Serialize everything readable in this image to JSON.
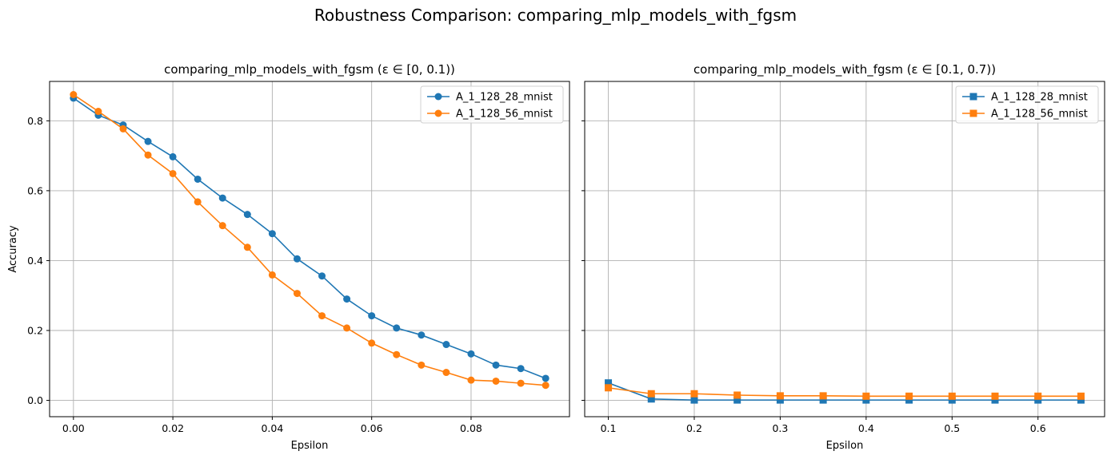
{
  "figure": {
    "title": "Robustness Comparison: comparing_mlp_models_with_fgsm"
  },
  "chart_data": [
    {
      "type": "line",
      "title": "comparing_mlp_models_with_fgsm (ε ∈ [0, 0.1))",
      "xlabel": "Epsilon",
      "ylabel": "Accuracy",
      "xlim": [
        -0.0048,
        0.0998
      ],
      "ylim": [
        -0.0467,
        0.9127
      ],
      "xticks": [
        0.0,
        0.02,
        0.04,
        0.06,
        0.08
      ],
      "xtick_labels": [
        "0.00",
        "0.02",
        "0.04",
        "0.06",
        "0.08"
      ],
      "yticks": [
        0.0,
        0.2,
        0.4,
        0.6,
        0.8
      ],
      "ytick_labels": [
        "0.0",
        "0.2",
        "0.4",
        "0.6",
        "0.8"
      ],
      "grid": true,
      "legend": "upper-right",
      "marker": "circle",
      "x": [
        0.0,
        0.005,
        0.01,
        0.015,
        0.02,
        0.025,
        0.03,
        0.035,
        0.04,
        0.045,
        0.05,
        0.055,
        0.06,
        0.065,
        0.07,
        0.075,
        0.08,
        0.085,
        0.09,
        0.095
      ],
      "series": [
        {
          "name": "A_1_128_28_mnist",
          "color": "#1f77b4",
          "values": [
            0.865,
            0.816,
            0.788,
            0.741,
            0.697,
            0.633,
            0.579,
            0.532,
            0.477,
            0.405,
            0.356,
            0.29,
            0.242,
            0.207,
            0.187,
            0.16,
            0.133,
            0.101,
            0.091,
            0.063
          ]
        },
        {
          "name": "A_1_128_56_mnist",
          "color": "#ff7f0e",
          "values": [
            0.875,
            0.827,
            0.777,
            0.702,
            0.649,
            0.568,
            0.5,
            0.438,
            0.359,
            0.306,
            0.242,
            0.207,
            0.164,
            0.131,
            0.101,
            0.08,
            0.058,
            0.055,
            0.049,
            0.043
          ]
        }
      ]
    },
    {
      "type": "line",
      "title": "comparing_mlp_models_with_fgsm (ε ∈ [0.1, 0.7))",
      "xlabel": "Epsilon",
      "ylabel": "",
      "xlim": [
        0.0725,
        0.6775
      ],
      "ylim": [
        -0.0467,
        0.9127
      ],
      "xticks": [
        0.1,
        0.2,
        0.3,
        0.4,
        0.5,
        0.6
      ],
      "xtick_labels": [
        "0.1",
        "0.2",
        "0.3",
        "0.4",
        "0.5",
        "0.6"
      ],
      "yticks": [
        0.0,
        0.2,
        0.4,
        0.6,
        0.8
      ],
      "grid": true,
      "legend": "upper-right",
      "marker": "square",
      "x": [
        0.1,
        0.15,
        0.2,
        0.25,
        0.3,
        0.35,
        0.4,
        0.45,
        0.5,
        0.55,
        0.6,
        0.65
      ],
      "series": [
        {
          "name": "A_1_128_28_mnist",
          "color": "#1f77b4",
          "values": [
            0.05,
            0.004,
            0.001,
            0.001,
            0.001,
            0.001,
            0.001,
            0.001,
            0.001,
            0.001,
            0.001,
            0.001
          ]
        },
        {
          "name": "A_1_128_56_mnist",
          "color": "#ff7f0e",
          "values": [
            0.036,
            0.019,
            0.019,
            0.015,
            0.013,
            0.013,
            0.012,
            0.012,
            0.012,
            0.012,
            0.012,
            0.012
          ]
        }
      ]
    }
  ]
}
